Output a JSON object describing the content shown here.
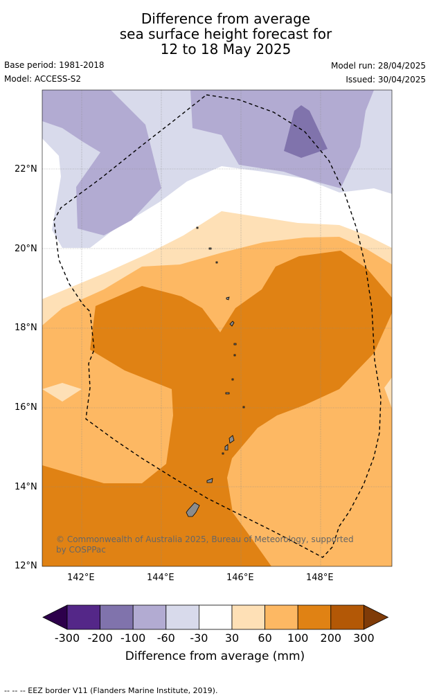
{
  "title_lines": [
    "Difference from average",
    "sea surface height forecast for",
    "12 to 18 May 2025"
  ],
  "base_period": "Base period: 1981-2018",
  "model": "Model: ACCESS-S2",
  "model_run": "Model run: 28/04/2025",
  "issued": "Issued: 30/04/2025",
  "copyright": "© Commonwealth of Australia 2025, Bureau of Meteorology, supported by COSPPac",
  "footnote": "--  --  -- EEZ border V11 (Flanders Marine Institute, 2019).",
  "lat_ticks": [
    "22°N",
    "20°N",
    "18°N",
    "16°N",
    "14°N",
    "12°N"
  ],
  "lon_ticks": [
    "142°E",
    "144°E",
    "146°E",
    "148°E"
  ],
  "colorbar": {
    "title": "Difference from average (mm)",
    "labels": [
      "-300",
      "-200",
      "-100",
      "-60",
      "-30",
      "30",
      "60",
      "100",
      "200",
      "300"
    ],
    "colors": [
      "#2d004b",
      "#542788",
      "#8073ac",
      "#b2abd2",
      "#d8daeb",
      "#ffffff",
      "#fee0b6",
      "#fdb863",
      "#e08214",
      "#b35806",
      "#7f3b08"
    ]
  },
  "map": {
    "lat_range": [
      12,
      24
    ],
    "lon_range": [
      141,
      149.8
    ],
    "eez_label": "EEZ border"
  }
}
